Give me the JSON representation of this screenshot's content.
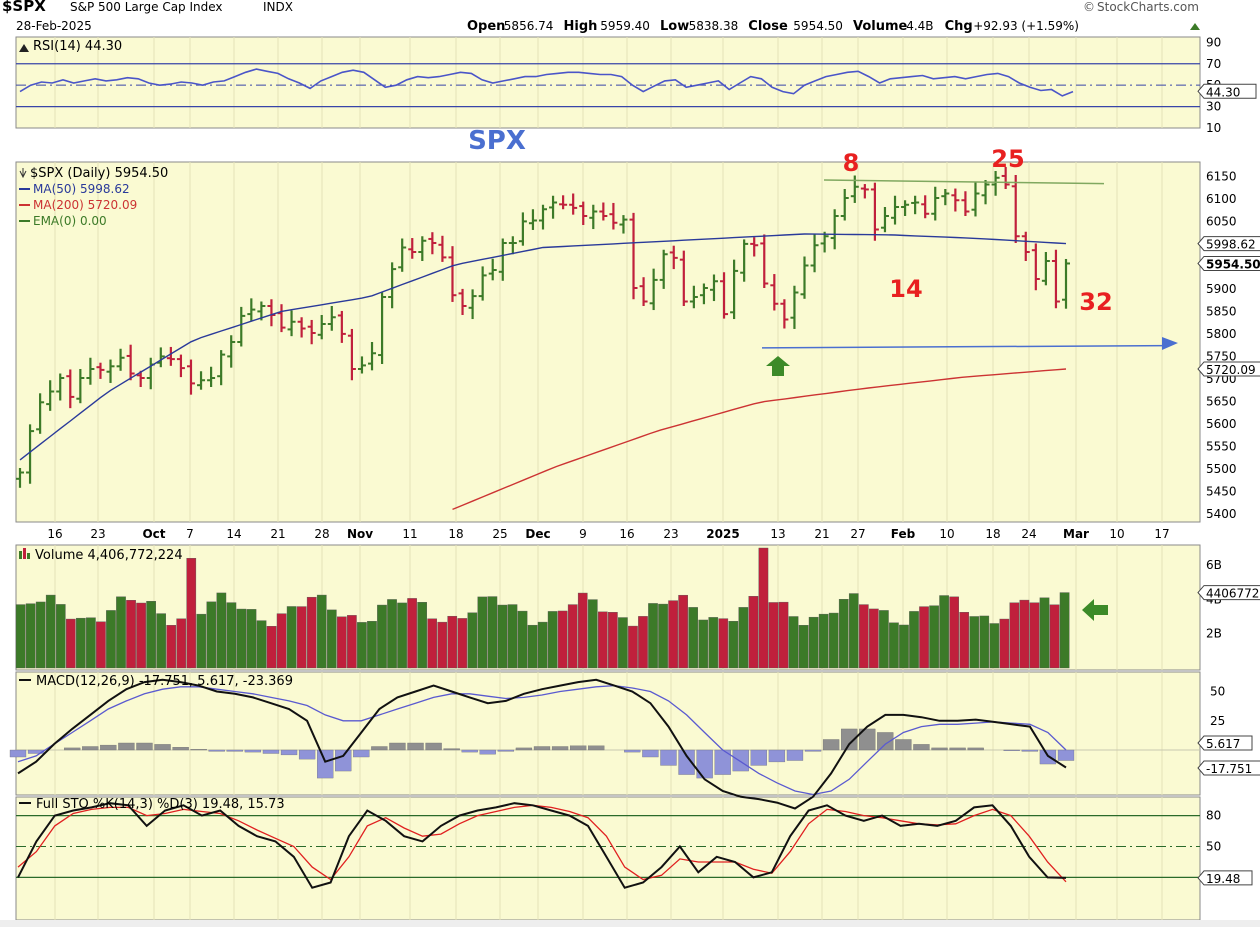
{
  "header": {
    "symbol": "$SPX",
    "name": "S&P 500 Large Cap Index",
    "exchange": "INDX",
    "date": "28-Feb-2025",
    "brand": "StockCharts.com",
    "open_label": "Open",
    "open": "5856.74",
    "high_label": "High",
    "high": "5959.40",
    "low_label": "Low",
    "low": "5838.38",
    "close_label": "Close",
    "close": "5954.50",
    "volume_label": "Volume",
    "volume": "4.4B",
    "chg_label": "Chg",
    "chg": "+92.93 (+1.59%)"
  },
  "annotations": {
    "spx_title": "SPX",
    "n8": "8",
    "n25": "25",
    "n14": "14",
    "n32": "32"
  },
  "colors": {
    "panel_bg": "#fafad2",
    "up": "#3c7a28",
    "down": "#c0203c",
    "ma50": "#2a3a9a",
    "ma200": "#cc3333",
    "rsi": "#4a55c8",
    "macd_hist": "#8f8f8f",
    "macd_hist_neg": "#8f93d8",
    "annot_red": "#e82020",
    "annot_blue": "#4a6fd0",
    "arrow_green": "#3c8a28"
  },
  "chart_data": [
    {
      "type": "line",
      "title": "RSI(14) 44.30",
      "value": 44.3,
      "ylim": [
        10,
        95
      ],
      "levels": [
        70,
        50,
        30
      ],
      "y_ticks": [
        "90",
        "70",
        "50",
        "30",
        "10"
      ],
      "last_label": "44.30"
    },
    {
      "type": "ohlc",
      "title": "$SPX (Daily) 5954.50",
      "legend": [
        "MA(50) 5998.62",
        "MA(200) 5720.09",
        "EMA(0) 0.00"
      ],
      "ylim": [
        5380,
        6180
      ],
      "y_ticks": [
        "6150",
        "6100",
        "6050",
        "5900",
        "5850",
        "5800",
        "5750",
        "5700",
        "5650",
        "5600",
        "5550",
        "5500",
        "5450",
        "5400"
      ],
      "x_tick_labels": [
        "16",
        "23",
        "Oct",
        "7",
        "14",
        "21",
        "28",
        "Nov",
        "11",
        "18",
        "25",
        "Dec",
        "9",
        "16",
        "23",
        "2025",
        "13",
        "21",
        "27",
        "Feb",
        "10",
        "18",
        "24",
        "Mar",
        "10",
        "17"
      ],
      "last_price_label": "5954.50",
      "ma50_label": "5998.62",
      "ma200_label": "5720.09",
      "close_by_day": [
        5490,
        5582,
        5646,
        5670,
        5700,
        5658,
        5700,
        5720,
        5718,
        5726,
        5745,
        5710,
        5700,
        5730,
        5748,
        5742,
        5722,
        5688,
        5695,
        5700,
        5752,
        5780,
        5838,
        5852,
        5860,
        5840,
        5812,
        5825,
        5810,
        5800,
        5820,
        5835,
        5798,
        5720,
        5728,
        5755,
        5880,
        5942,
        5990,
        5980,
        6005,
        6000,
        5968,
        5884,
        5860,
        5882,
        5928,
        5940,
        6000,
        6000,
        6048,
        6050,
        6075,
        6090,
        6085,
        6078,
        6060,
        6070,
        6060,
        6045,
        6052,
        5900,
        5870,
        5918,
        5975,
        5967,
        5870,
        5880,
        5900,
        5915,
        5842,
        5938,
        5998,
        5995,
        5910,
        5865,
        5830,
        5890,
        5950,
        5995,
        6015,
        6060,
        6100,
        6125,
        6119,
        6030,
        6060,
        6080,
        6085,
        6090,
        6065,
        6100,
        6110,
        6095,
        6070,
        6110,
        6130,
        6145,
        6130,
        6015,
        5980,
        5920,
        5960,
        5870,
        5954.5
      ],
      "ma50_by_day": [
        5518,
        5668,
        5785,
        5848,
        5880,
        5952,
        5990,
        6000,
        6010,
        6020,
        6018,
        6010,
        5998.62
      ],
      "ma200_by_day": [
        5408,
        5502,
        5582,
        5646,
        5676,
        5702,
        5720.09
      ]
    },
    {
      "type": "bar",
      "title": "Volume 4,406,772,224",
      "y_ticks": [
        "6B",
        "4B",
        "2B"
      ],
      "ylim": [
        0,
        7
      ],
      "last_label": "4406772224"
    },
    {
      "type": "line",
      "title": "MACD(12,26,9) -17.751, 5.617, -23.369",
      "series": [
        {
          "name": "-17.751"
        },
        {
          "name": "5.617"
        },
        {
          "name": "-23.369"
        }
      ],
      "y_ticks": [
        "50",
        "25"
      ],
      "macd_label": "-17.751",
      "signal_label": "5.617"
    },
    {
      "type": "line",
      "title": "Full STO %K(14,3) %D(3) 19.48, 15.73",
      "series": [
        {
          "name": "19.48"
        },
        {
          "name": "15.73"
        }
      ],
      "ylim": [
        0,
        100
      ],
      "levels": [
        80,
        50,
        20
      ],
      "y_ticks": [
        "80",
        "50"
      ],
      "last_label": "19.48"
    }
  ]
}
